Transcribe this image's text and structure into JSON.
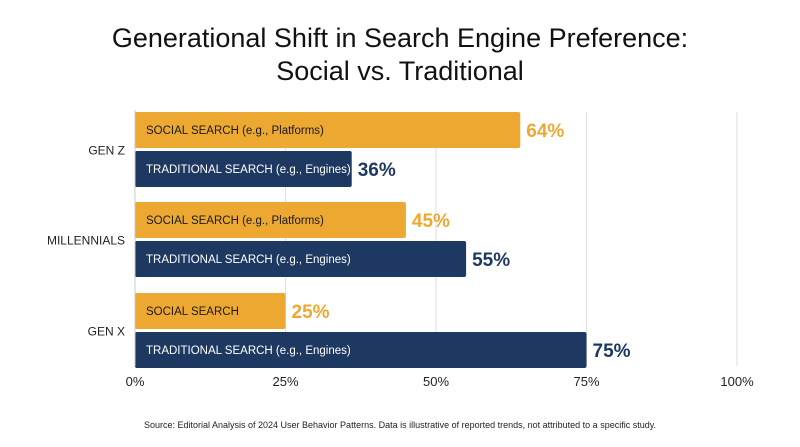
{
  "title_line1": "Generational Shift in Search Engine Preference:",
  "title_line2": "Social vs. Traditional",
  "source": "Source: Editorial Analysis of 2024 User Behavior Patterns. Data is illustrative of reported trends, not attributed to a specific study.",
  "chart_data": {
    "type": "bar",
    "orientation": "horizontal",
    "categories": [
      "GEN Z",
      "MILLENNIALS",
      "GEN X"
    ],
    "series": [
      {
        "color": "#EDA832",
        "values": [
          64,
          45,
          25
        ],
        "bar_labels": [
          "SOCIAL SEARCH (e.g., Platforms)",
          "SOCIAL SEARCH (e.g., Platforms)",
          "SOCIAL SEARCH"
        ],
        "value_labels": [
          "64%",
          "45%",
          "25%"
        ]
      },
      {
        "color": "#1E3961",
        "values": [
          36,
          55,
          75
        ],
        "bar_labels": [
          "TRADITIONAL SEARCH (e.g., Engines)",
          "TRADITIONAL SEARCH (e.g., Engines)",
          "TRADITIONAL SEARCH (e.g., Engines)"
        ],
        "value_labels": [
          "36%",
          "55%",
          "75%"
        ]
      }
    ],
    "xlim": [
      0,
      100
    ],
    "xticks": [
      "0%",
      "25%",
      "50%",
      "75%",
      "100%"
    ],
    "grid": true,
    "legend": "none"
  }
}
